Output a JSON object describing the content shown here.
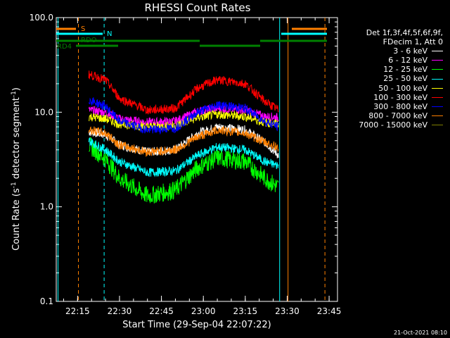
{
  "chart_data": {
    "type": "line",
    "title": "RHESSI Count Rates",
    "xlabel": "Start Time (29-Sep-04 22:07:22)",
    "ylabel_parts": [
      "Count Rate (s",
      "-1",
      " detector segment",
      "-1",
      ")"
    ],
    "yscale": "log",
    "ylim": [
      0.1,
      100.0
    ],
    "yticks": [
      "0.1",
      "1.0",
      "10.0",
      "100.0"
    ],
    "xlim_minutes": [
      22.12,
      23.78
    ],
    "xticks": [
      "22:15",
      "22:30",
      "22:45",
      "23:00",
      "23:15",
      "23:30",
      "23:45"
    ],
    "x_unit": "hh:mm",
    "series": [
      {
        "name": "3 - 6 keV",
        "color": "#ffffff",
        "x": [
          "22:19",
          "22:25",
          "22:30",
          "22:40",
          "22:50",
          "22:58",
          "23:05",
          "23:15",
          "23:22",
          "23:27"
        ],
        "values": [
          6.2,
          5.8,
          4.5,
          3.8,
          4.0,
          6.0,
          7.0,
          6.5,
          4.8,
          3.5
        ]
      },
      {
        "name": "6 - 12 keV",
        "color": "#ff00ff",
        "x": [
          "22:19",
          "22:25",
          "22:30",
          "22:40",
          "22:50",
          "22:58",
          "23:05",
          "23:15",
          "23:22",
          "23:27"
        ],
        "values": [
          10.5,
          10.0,
          8.5,
          7.8,
          8.0,
          10.2,
          11.0,
          10.5,
          9.0,
          8.8
        ]
      },
      {
        "name": "12 - 25 keV",
        "color": "#00ff00",
        "x": [
          "22:19",
          "22:25",
          "22:30",
          "22:40",
          "22:50",
          "22:58",
          "23:05",
          "23:15",
          "23:22",
          "23:27"
        ],
        "values": [
          4.5,
          3.2,
          2.0,
          1.3,
          1.5,
          2.6,
          3.3,
          3.0,
          2.0,
          1.6
        ]
      },
      {
        "name": "25 - 50 keV",
        "color": "#00ffff",
        "x": [
          "22:19",
          "22:25",
          "22:30",
          "22:40",
          "22:50",
          "22:58",
          "23:05",
          "23:15",
          "23:22",
          "23:27"
        ],
        "values": [
          5.0,
          4.0,
          3.0,
          2.3,
          2.4,
          3.5,
          4.3,
          4.0,
          3.0,
          2.7
        ]
      },
      {
        "name": "50 - 100 keV",
        "color": "#ffff00",
        "x": [
          "22:19",
          "22:25",
          "22:30",
          "22:40",
          "22:50",
          "22:58",
          "23:05",
          "23:15",
          "23:22",
          "23:27"
        ],
        "values": [
          9.0,
          8.5,
          7.5,
          7.0,
          7.2,
          8.8,
          9.5,
          9.0,
          7.8,
          7.5
        ]
      },
      {
        "name": "100 - 300 keV",
        "color": "#ff0000",
        "x": [
          "22:19",
          "22:25",
          "22:30",
          "22:40",
          "22:50",
          "22:58",
          "23:05",
          "23:15",
          "23:22",
          "23:27"
        ],
        "values": [
          25.0,
          22.0,
          14.0,
          10.5,
          11.0,
          18.0,
          22.0,
          20.0,
          13.0,
          10.5
        ]
      },
      {
        "name": "300 - 800 keV",
        "color": "#0000ff",
        "x": [
          "22:19",
          "22:25",
          "22:30",
          "22:40",
          "22:50",
          "22:58",
          "23:05",
          "23:15",
          "23:22",
          "23:27"
        ],
        "values": [
          13.5,
          11.5,
          8.0,
          6.5,
          6.8,
          10.0,
          12.0,
          11.0,
          8.0,
          7.0
        ]
      },
      {
        "name": "800 - 7000 keV",
        "color": "#ff8000",
        "x": [
          "22:19",
          "22:25",
          "22:30",
          "22:40",
          "22:50",
          "22:58",
          "23:05",
          "23:15",
          "23:22",
          "23:27"
        ],
        "values": [
          6.5,
          6.0,
          4.5,
          3.8,
          4.0,
          5.5,
          6.5,
          6.0,
          4.8,
          4.2
        ]
      },
      {
        "name": "7000 - 15000 keV",
        "color": "#808000",
        "x": [],
        "values": []
      }
    ],
    "legend_header": [
      "Det 1f,3f,4f,5f,6f,9f,",
      "FDecim 1, Att 0"
    ],
    "legend_position": "right",
    "status_bars": [
      {
        "label": "S",
        "color": "#ff8000"
      },
      {
        "label": "N",
        "color": "#00ffff"
      },
      {
        "label": "RDO",
        "color": "#008000"
      },
      {
        "label": "RD4",
        "color": "#008000"
      }
    ],
    "footer": "21-Oct-2021 08:10"
  }
}
